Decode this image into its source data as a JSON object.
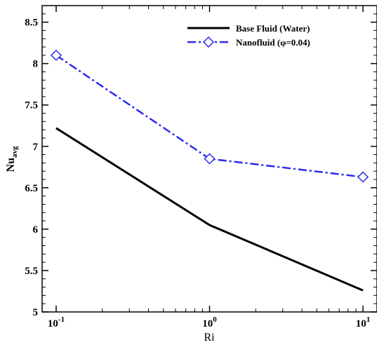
{
  "chart_data": {
    "type": "line",
    "xlabel": "Ri",
    "ylabel": {
      "main": "Nu",
      "sub": "avg"
    },
    "xscale": "log",
    "xlim": [
      0.1,
      10
    ],
    "ylim": [
      5,
      8.7
    ],
    "x": [
      0.1,
      1,
      10
    ],
    "x_ticks": [
      {
        "value": 0.1,
        "base": "10",
        "exp": "-1"
      },
      {
        "value": 1,
        "base": "10",
        "exp": "0"
      },
      {
        "value": 10,
        "base": "10",
        "exp": "1"
      }
    ],
    "y_ticks": [
      {
        "value": 5,
        "label": "5"
      },
      {
        "value": 5.5,
        "label": "5.5"
      },
      {
        "value": 6,
        "label": "6"
      },
      {
        "value": 6.5,
        "label": "6.5"
      },
      {
        "value": 7,
        "label": "7"
      },
      {
        "value": 7.5,
        "label": "7.5"
      },
      {
        "value": 8,
        "label": "8"
      },
      {
        "value": 8.5,
        "label": "8.5"
      }
    ],
    "series": [
      {
        "name": "Base Fluid (Water)",
        "values": [
          7.22,
          6.05,
          5.26
        ],
        "color": "#000000",
        "style": "solid",
        "marker": "none"
      },
      {
        "name": "Nanofluid (φ=0.04)",
        "values": [
          8.1,
          6.85,
          6.63
        ],
        "color": "#2a2aee",
        "style": "dash-dot",
        "marker": "diamond"
      }
    ],
    "legend": {
      "position": "top-right"
    },
    "grid": false
  }
}
